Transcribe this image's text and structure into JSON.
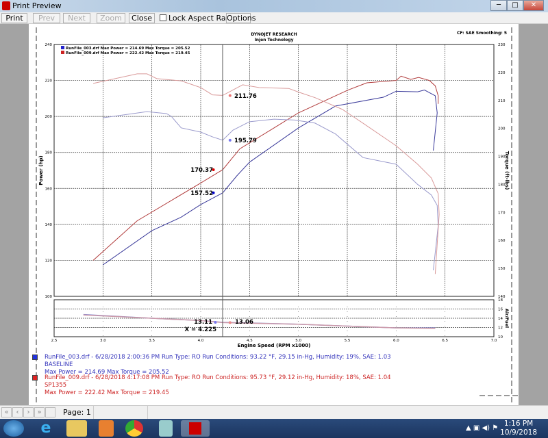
{
  "window": {
    "title": "Print Preview",
    "minimize": "─",
    "maximize": "□",
    "close": "✕"
  },
  "toolbar": {
    "print": "Print",
    "prev": "Prev",
    "next": "Next",
    "zoom_out": "Zoom Out",
    "close": "Close",
    "lock_aspect": "Lock Aspect Ratio",
    "lock_checked": false,
    "options": "Options"
  },
  "report": {
    "company": "DYNOJET RESEARCH",
    "subtitle": "Injen Technology",
    "cf": "CF: SAE  Smoothing: 5",
    "legend": [
      {
        "text": "RunFile_003.drf Max Power = 214.69",
        "torque": "Max Torque = 205.52",
        "color": "#2222cc"
      },
      {
        "text": "RunFile_009.drf Max Power = 222.42",
        "torque": "Max Torque = 219.45",
        "color": "#cc2222"
      }
    ],
    "runs": [
      {
        "line1": "RunFile_003.drf - 6/28/2018 2:00:36 PM  Run Type: RO  Run Conditions: 93.22 °F, 29.15 in-Hg,  Humidity:  19%, SAE: 1.03",
        "line2": "BASELINE",
        "line3": "Max Power = 214.69  Max Torque = 205.52",
        "color": "#3333bb"
      },
      {
        "line1": "RunFile_009.drf - 6/28/2018 4:17:08 PM  Run Type: RO  Run Conditions: 95.73 °F, 29.12 in-Hg,  Humidity:  18%, SAE: 1.04",
        "line2": "SP1355",
        "line3": "Max Power = 222.42  Max Torque = 219.45",
        "color": "#cc2222"
      }
    ]
  },
  "chart_data": {
    "type": "line",
    "xlabel": "Engine Speed (RPM x1000)",
    "ylabel": "Power (hp)",
    "y2label": "Torque (ft-lbs)",
    "y3label": "Air/Fuel",
    "xlim": [
      2.5,
      7.0
    ],
    "ylim": [
      100,
      240
    ],
    "y2lim": [
      140,
      230
    ],
    "y3lim": [
      10,
      18
    ],
    "grid": true,
    "xticks": [
      "2.5",
      "3.0",
      "3.5",
      "4.0",
      "4.5",
      "5.0",
      "5.5",
      "6.0",
      "6.5",
      "7.0"
    ],
    "yticks": [
      "100",
      "120",
      "140",
      "160",
      "180",
      "200",
      "220",
      "240"
    ],
    "y2ticks": [
      "140",
      "150",
      "160",
      "170",
      "180",
      "190",
      "200",
      "210",
      "220",
      "230"
    ],
    "y3ticks": [
      "10",
      "12",
      "14",
      "16",
      "18"
    ],
    "cursor": {
      "label": "X = 4.225",
      "x": 4.225,
      "power_003": "157.52",
      "power_009": "170.37",
      "torque_003": "195.79",
      "torque_009": "211.76",
      "afr_003": "13.11",
      "afr_009": "13.06"
    },
    "series": [
      {
        "name": "RunFile_003.drf",
        "kind": "power",
        "color": "#3a3a9a",
        "points": [
          [
            3.0,
            117.5
          ],
          [
            3.5,
            136.5
          ],
          [
            3.8,
            144
          ],
          [
            4.0,
            151
          ],
          [
            4.225,
            157.5
          ],
          [
            4.37,
            167
          ],
          [
            4.5,
            174.6
          ],
          [
            5.0,
            193.6
          ],
          [
            5.38,
            205.8
          ],
          [
            5.5,
            207
          ],
          [
            5.87,
            210.7
          ],
          [
            6.0,
            214
          ],
          [
            6.22,
            213.7
          ],
          [
            6.29,
            214.7
          ],
          [
            6.4,
            211.5
          ],
          [
            6.42,
            202
          ],
          [
            6.38,
            181
          ]
        ]
      },
      {
        "name": "RunFile_009.drf",
        "kind": "power",
        "color": "#b03a3a",
        "points": [
          [
            2.9,
            120
          ],
          [
            3.35,
            142
          ],
          [
            4.0,
            163
          ],
          [
            4.225,
            170.4
          ],
          [
            4.4,
            182
          ],
          [
            4.75,
            193.6
          ],
          [
            5.0,
            202
          ],
          [
            5.5,
            214.5
          ],
          [
            5.7,
            218.7
          ],
          [
            6.0,
            220
          ],
          [
            6.05,
            222.4
          ],
          [
            6.15,
            220.6
          ],
          [
            6.23,
            221.7
          ],
          [
            6.34,
            220
          ],
          [
            6.4,
            217
          ],
          [
            6.43,
            211.5
          ],
          [
            6.43,
            207
          ]
        ]
      },
      {
        "name": "RunFile_003.drf",
        "kind": "torque",
        "color": "#9a9acc",
        "points": [
          [
            3.0,
            203.8
          ],
          [
            3.35,
            205.5
          ],
          [
            3.45,
            206
          ],
          [
            3.65,
            205.3
          ],
          [
            3.7,
            204.3
          ],
          [
            3.8,
            200.2
          ],
          [
            4.0,
            198.7
          ],
          [
            4.12,
            197
          ],
          [
            4.225,
            195.8
          ],
          [
            4.33,
            199.4
          ],
          [
            4.5,
            202.4
          ],
          [
            4.75,
            203.3
          ],
          [
            4.96,
            203
          ],
          [
            5.17,
            201.9
          ],
          [
            5.38,
            198
          ],
          [
            5.66,
            189.6
          ],
          [
            6.0,
            187.2
          ],
          [
            6.22,
            180
          ],
          [
            6.36,
            176.2
          ],
          [
            6.42,
            172.5
          ],
          [
            6.43,
            165.2
          ],
          [
            6.38,
            149.3
          ]
        ]
      },
      {
        "name": "RunFile_009.drf",
        "kind": "torque",
        "color": "#d99a9a",
        "points": [
          [
            2.9,
            216.1
          ],
          [
            3.35,
            219.5
          ],
          [
            3.45,
            219.5
          ],
          [
            3.55,
            217.8
          ],
          [
            3.8,
            217
          ],
          [
            4.0,
            214.6
          ],
          [
            4.12,
            212
          ],
          [
            4.225,
            211.8
          ],
          [
            4.43,
            215.6
          ],
          [
            4.6,
            214.6
          ],
          [
            4.9,
            214.3
          ],
          [
            5.0,
            213
          ],
          [
            5.17,
            211
          ],
          [
            5.45,
            206.8
          ],
          [
            5.66,
            201.9
          ],
          [
            6.0,
            193.8
          ],
          [
            6.22,
            187.2
          ],
          [
            6.36,
            182.3
          ],
          [
            6.43,
            176.7
          ],
          [
            6.44,
            169.3
          ],
          [
            6.4,
            148
          ]
        ]
      },
      {
        "name": "RunFile_003.drf",
        "kind": "afr",
        "color": "#8a8acc",
        "points": [
          [
            2.8,
            14.8
          ],
          [
            3.5,
            14.0
          ],
          [
            4.0,
            13.5
          ],
          [
            4.225,
            13.11
          ],
          [
            5.0,
            12.7
          ],
          [
            5.5,
            12.3
          ],
          [
            6.0,
            11.9
          ],
          [
            6.4,
            11.9
          ]
        ]
      },
      {
        "name": "RunFile_009.drf",
        "kind": "afr",
        "color": "#cc9aaa",
        "points": [
          [
            2.8,
            14.7
          ],
          [
            3.5,
            14.0
          ],
          [
            4.0,
            13.5
          ],
          [
            4.225,
            13.06
          ],
          [
            5.0,
            12.7
          ],
          [
            5.5,
            12.3
          ],
          [
            6.0,
            11.9
          ],
          [
            6.4,
            11.8
          ]
        ]
      }
    ]
  },
  "status": {
    "first": "«",
    "prev": "‹",
    "next": "›",
    "last": "»",
    "page": "Page: 1"
  },
  "taskbar": {
    "time": "1:16 PM",
    "date": "10/9/2018"
  }
}
